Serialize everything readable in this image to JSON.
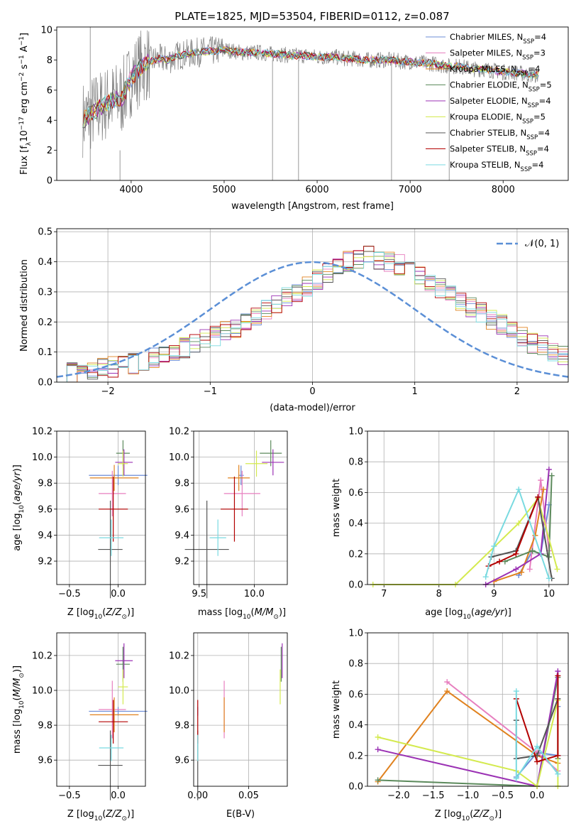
{
  "figure_title": "PLATE=1825, MJD=53504, FIBERID=0112, z=0.087",
  "colors": {
    "Chabrier MILES": "#6b8cd6",
    "Salpeter MILES": "#e77fbf",
    "Kroupa MILES": "#e0821f",
    "Chabrier ELODIE": "#5c8a5c",
    "Salpeter ELODIE": "#9b32b4",
    "Kroupa ELODIE": "#d4ea4f",
    "Chabrier STELIB": "#555555",
    "Salpeter STELIB": "#b30000",
    "Kroupa STELIB": "#79dae0"
  },
  "chart_data": [
    {
      "id": "spectrum",
      "type": "line",
      "title": "PLATE=1825, MJD=53504, FIBERID=0112, z=0.087",
      "xlabel": "wavelength [Angstrom, rest frame]",
      "ylabel": "Flux [f_λ 10^-17 erg cm^-2 s^-1 A^-1]",
      "xlim": [
        3200,
        8700
      ],
      "ylim": [
        0,
        10.2
      ],
      "xticks": [
        4000,
        5000,
        6000,
        7000,
        8000
      ],
      "yticks": [
        0,
        2,
        4,
        6,
        8,
        10
      ],
      "grid": false,
      "legend_position": "upper-right",
      "observed_color": "#808080",
      "x": [
        3500,
        3600,
        3700,
        3800,
        3900,
        4000,
        4100,
        4200,
        4300,
        4400,
        4500,
        4600,
        4700,
        4800,
        4900,
        5000,
        5100,
        5200,
        5300,
        5400,
        5500,
        5600,
        5700,
        5800,
        5900,
        6000,
        6100,
        6200,
        6300,
        6400,
        6500,
        6600,
        6700,
        6800,
        6900,
        7000,
        7100,
        7200,
        7300,
        7400,
        7500,
        7600,
        7700,
        7800,
        7900,
        8000,
        8100,
        8200,
        8300,
        8400
      ],
      "model_flux": [
        4.1,
        4.6,
        5.0,
        5.3,
        5.5,
        6.8,
        7.5,
        7.9,
        8.1,
        8.0,
        8.3,
        8.4,
        8.5,
        8.6,
        8.6,
        8.7,
        8.6,
        8.5,
        8.5,
        8.5,
        8.4,
        8.4,
        8.3,
        8.3,
        8.3,
        8.2,
        8.2,
        8.2,
        8.1,
        8.1,
        8.0,
        8.0,
        8.0,
        8.0,
        7.9,
        7.9,
        7.8,
        7.8,
        7.7,
        7.6,
        7.6,
        7.5,
        7.4,
        7.4,
        7.3,
        7.2,
        7.2,
        7.1,
        7.0,
        7.0
      ],
      "series": [
        {
          "name": "Chabrier MILES, N_SSP=4"
        },
        {
          "name": "Salpeter MILES, N_SSP=3"
        },
        {
          "name": "Kroupa MILES, N_SSP=4"
        },
        {
          "name": "Chabrier ELODIE, N_SSP=5"
        },
        {
          "name": "Salpeter ELODIE, N_SSP=4"
        },
        {
          "name": "Kroupa ELODIE, N_SSP=5"
        },
        {
          "name": "Chabrier STELIB, N_SSP=4"
        },
        {
          "name": "Salpeter STELIB, N_SSP=4"
        },
        {
          "name": "Kroupa STELIB, N_SSP=4"
        }
      ]
    },
    {
      "id": "residuals",
      "type": "bar",
      "xlabel": "(data-model)/error",
      "ylabel": "Normed distribution",
      "xlim": [
        -2.5,
        2.5
      ],
      "ylim": [
        0,
        0.51
      ],
      "xticks": [
        -2,
        -1,
        0,
        1,
        2
      ],
      "yticks": [
        0.0,
        0.1,
        0.2,
        0.3,
        0.4,
        0.5
      ],
      "grid": true,
      "legend_position": "upper-right",
      "reference": {
        "name": "N(0,1)",
        "mu": 0,
        "sigma": 1,
        "color": "#5b8fd6"
      },
      "bin_width": 0.1,
      "bin_start": -2.5,
      "approx_density": [
        0.025,
        0.03,
        0.035,
        0.04,
        0.045,
        0.05,
        0.055,
        0.062,
        0.07,
        0.08,
        0.09,
        0.1,
        0.115,
        0.13,
        0.14,
        0.155,
        0.17,
        0.18,
        0.2,
        0.22,
        0.24,
        0.26,
        0.28,
        0.3,
        0.32,
        0.34,
        0.36,
        0.38,
        0.4,
        0.41,
        0.42,
        0.41,
        0.4,
        0.39,
        0.37,
        0.35,
        0.33,
        0.31,
        0.29,
        0.27,
        0.25,
        0.23,
        0.21,
        0.19,
        0.17,
        0.15,
        0.13,
        0.12,
        0.1,
        0.09
      ]
    },
    {
      "id": "age_vs_Z",
      "type": "scatter",
      "xlabel": "Z [log10(Z/Z⊙)]",
      "ylabel": "age [log10(age/yr)]",
      "xlim": [
        -0.63,
        0.28
      ],
      "ylim": [
        9.02,
        10.2
      ],
      "xticks": [
        -0.5,
        0.0
      ],
      "yticks": [
        9.2,
        9.4,
        9.6,
        9.8,
        10.0,
        10.2
      ],
      "grid": true
    },
    {
      "id": "age_vs_mass",
      "type": "scatter",
      "xlabel": "mass [log10(M/M⊙)]",
      "xlim": [
        9.45,
        10.3
      ],
      "ylim": [
        9.02,
        10.2
      ],
      "xticks": [
        9.5,
        10.0
      ],
      "yticks": [
        9.2,
        9.4,
        9.6,
        9.8,
        10.0,
        10.2
      ],
      "grid": true
    },
    {
      "id": "massweight_vs_age",
      "type": "line",
      "xlabel": "age [log10(age/yr)]",
      "ylabel": "mass weight",
      "xlim": [
        6.7,
        10.35
      ],
      "ylim": [
        0,
        1.0
      ],
      "xticks": [
        7,
        8,
        9,
        10
      ],
      "yticks": [
        0.0,
        0.2,
        0.4,
        0.6,
        0.8,
        1.0
      ],
      "grid": true
    },
    {
      "id": "mass_vs_Z",
      "type": "scatter",
      "xlabel": "Z [log10(Z/Z⊙)]",
      "ylabel": "mass [log10(M/M⊙)]",
      "xlim": [
        -0.63,
        0.28
      ],
      "ylim": [
        9.45,
        10.33
      ],
      "xticks": [
        -0.5,
        0.0
      ],
      "yticks": [
        9.6,
        9.8,
        10.0,
        10.2
      ],
      "grid": true
    },
    {
      "id": "mass_vs_EBV",
      "type": "scatter",
      "xlabel": "E(B-V)",
      "xlim": [
        -0.004,
        0.088
      ],
      "ylim": [
        9.45,
        10.33
      ],
      "xticks": [
        0.0,
        0.05
      ],
      "xtick_labels": [
        "0.00",
        "0.05"
      ],
      "yticks": [
        9.6,
        9.8,
        10.0,
        10.2
      ],
      "grid": true
    },
    {
      "id": "massweight_vs_Z",
      "type": "line",
      "xlabel": "Z [log10(Z/Z⊙)]",
      "ylabel": "mass weight",
      "xlim": [
        -2.45,
        0.45
      ],
      "ylim": [
        0,
        1.0
      ],
      "xticks": [
        -2.0,
        -1.5,
        -1.0,
        -0.5,
        0.0
      ],
      "yticks": [
        0.0,
        0.2,
        0.4,
        0.6,
        0.8,
        1.0
      ],
      "grid": true
    }
  ],
  "models": [
    {
      "name": "Chabrier MILES",
      "Z": 0.0,
      "Zerr": 0.6,
      "age": 9.86,
      "ageerr": 0.15,
      "mass": 9.88,
      "masserr": 0.05,
      "ebv": 0.0,
      "ebverr": 0.0
    },
    {
      "name": "Salpeter MILES",
      "Z": -0.06,
      "Zerr": 0.28,
      "age": 9.72,
      "ageerr": 0.35,
      "mass": 9.89,
      "masserr": 0.33,
      "ebv": 0.026,
      "ebverr": 0.0
    },
    {
      "name": "Kroupa MILES",
      "Z": -0.04,
      "Zerr": 0.5,
      "age": 9.84,
      "ageerr": 0.2,
      "mass": 9.86,
      "masserr": 0.2,
      "ebv": 0.026,
      "ebverr": 0.0
    },
    {
      "name": "Chabrier ELODIE",
      "Z": 0.05,
      "Zerr": 0.14,
      "age": 10.03,
      "ageerr": 0.2,
      "mass": 10.15,
      "masserr": 0.2,
      "ebv": 0.082,
      "ebverr": 0.0
    },
    {
      "name": "Salpeter ELODIE",
      "Z": 0.06,
      "Zerr": 0.18,
      "age": 9.96,
      "ageerr": 0.2,
      "mass": 10.17,
      "masserr": 0.2,
      "ebv": 0.083,
      "ebverr": 0.0
    },
    {
      "name": "Kroupa ELODIE",
      "Z": 0.05,
      "Zerr": 0.1,
      "age": 9.95,
      "ageerr": 0.2,
      "mass": 10.02,
      "masserr": 0.2,
      "ebv": 0.081,
      "ebverr": 0.0
    },
    {
      "name": "Chabrier STELIB",
      "Z": -0.08,
      "Zerr": 0.25,
      "age": 9.29,
      "ageerr": 0.75,
      "mass": 9.57,
      "masserr": 0.4,
      "ebv": 0.0,
      "ebverr": 0.0
    },
    {
      "name": "Salpeter STELIB",
      "Z": -0.05,
      "Zerr": 0.3,
      "age": 9.6,
      "ageerr": 0.5,
      "mass": 9.82,
      "masserr": 0.25,
      "ebv": 0.0,
      "ebverr": 0.0
    },
    {
      "name": "Kroupa STELIB",
      "Z": -0.07,
      "Zerr": 0.25,
      "age": 9.38,
      "ageerr": 0.28,
      "mass": 9.67,
      "masserr": 0.15,
      "ebv": 0.0,
      "ebverr": 0.0
    }
  ],
  "ssp_components": [
    {
      "name": "Chabrier MILES",
      "age": [
        9.45,
        9.7,
        9.85,
        10.0
      ],
      "weight": [
        0.06,
        0.22,
        0.2,
        0.52
      ],
      "Z": [
        -0.3,
        0.0,
        0.3,
        0.3
      ],
      "mw": [
        0.06,
        0.22,
        0.2,
        0.52
      ]
    },
    {
      "name": "Salpeter MILES",
      "age": [
        9.65,
        9.85,
        10.0
      ],
      "weight": [
        0.1,
        0.68,
        0.22
      ],
      "Z": [
        -1.3,
        0.0,
        0.3
      ],
      "mw": [
        0.68,
        0.22,
        0.1
      ]
    },
    {
      "name": "Kroupa MILES",
      "age": [
        9.0,
        9.5,
        9.75,
        9.9
      ],
      "weight": [
        0.02,
        0.08,
        0.32,
        0.62
      ],
      "Z": [
        -2.3,
        -1.3,
        0.0,
        0.3
      ],
      "mw": [
        0.03,
        0.62,
        0.2,
        0.15
      ]
    },
    {
      "name": "Chabrier ELODIE",
      "age": [
        9.2,
        9.7,
        10.0,
        10.05
      ],
      "weight": [
        0.15,
        0.22,
        0.18,
        0.71
      ],
      "Z": [
        -2.3,
        0.0,
        0.3,
        0.3
      ],
      "mw": [
        0.04,
        0.0,
        0.71,
        0.18
      ]
    },
    {
      "name": "Salpeter ELODIE",
      "age": [
        8.85,
        9.4,
        9.85,
        10.0
      ],
      "weight": [
        0.0,
        0.1,
        0.2,
        0.75
      ],
      "Z": [
        -2.3,
        0.0,
        0.3,
        0.3
      ],
      "mw": [
        0.24,
        0.0,
        0.75,
        0.2
      ]
    },
    {
      "name": "Kroupa ELODIE",
      "age": [
        6.8,
        8.3,
        9.45,
        9.8,
        10.15
      ],
      "weight": [
        0.0,
        0.0,
        0.4,
        0.56,
        0.1
      ],
      "Z": [
        -2.3,
        -0.3,
        0.0,
        0.3,
        0.3
      ],
      "mw": [
        0.32,
        0.1,
        0.0,
        0.56,
        0.0
      ]
    },
    {
      "name": "Chabrier STELIB",
      "age": [
        8.95,
        9.4,
        9.8,
        10.05
      ],
      "weight": [
        0.18,
        0.22,
        0.57,
        0.04
      ],
      "Z": [
        -0.3,
        -0.3,
        0.0,
        0.3
      ],
      "mw": [
        0.43,
        0.18,
        0.2,
        0.57
      ]
    },
    {
      "name": "Salpeter STELIB",
      "age": [
        8.9,
        9.1,
        9.4,
        9.8
      ],
      "weight": [
        0.12,
        0.15,
        0.2,
        0.57
      ],
      "Z": [
        -0.3,
        0.0,
        0.3,
        0.3
      ],
      "mw": [
        0.57,
        0.16,
        0.2,
        0.72
      ]
    },
    {
      "name": "Kroupa STELIB",
      "age": [
        8.85,
        9.0,
        9.45,
        10.0
      ],
      "weight": [
        0.05,
        0.25,
        0.62,
        0.04
      ],
      "Z": [
        -0.3,
        -0.3,
        0.0,
        0.3
      ],
      "mw": [
        0.62,
        0.05,
        0.26,
        0.08
      ]
    }
  ]
}
